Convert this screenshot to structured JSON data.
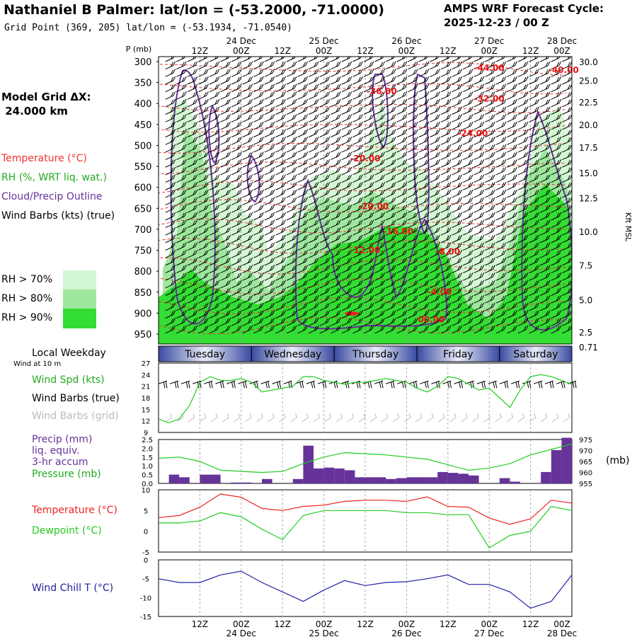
{
  "header": {
    "title": "Nathaniel B Palmer:  lat/lon = (-53.2000, -71.0000)",
    "subtitle": "Grid Point (369, 205) lat/lon = (-53.1934, -71.0540)",
    "cycle_line1": "AMPS WRF Forecast Cycle:",
    "cycle_line2": "2025-12-23 / 00  Z",
    "grid_label_1": "Model Grid ΔX:",
    "grid_label_2": " 24.000 km"
  },
  "legend": {
    "temperature": "Temperature (°C)",
    "rh": "RH (%, WRT liq. wat.)",
    "cloud": "Cloud/Precip Outline",
    "wind": "Wind Barbs (kts) (true)",
    "rh70": "RH > 70%",
    "rh80": "RH > 80%",
    "rh90": "RH > 90%",
    "rh70_color": "#d4f7d4",
    "rh80_color": "#9ee89e",
    "rh90_color": "#33dd33"
  },
  "time_axis": {
    "hours": [
      "12Z",
      "00Z",
      "12Z",
      "00Z",
      "12Z",
      "00Z",
      "12Z",
      "00Z",
      "12Z",
      "00Z"
    ],
    "dates": [
      "24 Dec",
      "25 Dec",
      "26 Dec",
      "27 Dec",
      "28 Dec"
    ],
    "weekdays_title": "Local Weekday",
    "weekdays": [
      "Tuesday",
      "Wednesday",
      "Thursday",
      "Friday",
      "Saturday"
    ]
  },
  "chart_data": [
    {
      "type": "heatmap",
      "name": "cross-section",
      "y_label": "P (mb)",
      "y_right_label": "Kft MSL",
      "pressure_levels": [
        300,
        350,
        400,
        450,
        500,
        550,
        600,
        650,
        700,
        750,
        800,
        850,
        900,
        950
      ],
      "height_kft": [
        "30.0",
        "25.0",
        "22.5",
        "20.0",
        "17.5",
        "15.0",
        "12.5",
        "10.0",
        "7.5",
        "5.0",
        "2.5",
        "0.71"
      ],
      "height_kft_pressure": [
        300,
        345,
        396,
        450,
        504,
        565,
        625,
        705,
        785,
        868,
        945,
        980
      ],
      "temperature_labels": [
        {
          "text": "-44.00",
          "t": 40,
          "p": 322
        },
        {
          "text": "-40.00",
          "t": 49,
          "p": 327
        },
        {
          "text": "-36.00",
          "t": 27,
          "p": 378
        },
        {
          "text": "-32.00",
          "t": 40,
          "p": 395
        },
        {
          "text": "-24.00",
          "t": 38,
          "p": 478
        },
        {
          "text": "-20.00",
          "t": 25,
          "p": 538
        },
        {
          "text": "-20.00",
          "t": 26,
          "p": 652
        },
        {
          "text": "-16.00",
          "t": 29,
          "p": 712
        },
        {
          "text": "-12.00",
          "t": 25,
          "p": 757
        },
        {
          "text": "-8.00",
          "t": 35,
          "p": 760
        },
        {
          "text": "-4.00",
          "t": 34,
          "p": 856
        },
        {
          "text": "00.00",
          "t": 33,
          "p": 922
        }
      ]
    },
    {
      "type": "line",
      "name": "wind-speed",
      "ylabel": "Wind Spd (kts)",
      "caption": "Wind at 10 m",
      "barb_true_label": "Wind Barbs (true)",
      "barb_grid_label": "Wind Barbs (grid)",
      "ylim": [
        9,
        27
      ],
      "yticks": [
        9,
        12,
        15,
        18,
        21,
        24,
        27
      ],
      "x_hours": [
        0,
        3,
        6,
        9,
        12,
        15,
        18,
        21,
        24,
        27,
        30,
        33,
        36,
        39,
        42,
        45,
        48,
        51,
        54,
        57,
        60,
        63,
        66,
        69,
        72,
        75,
        78,
        81,
        84,
        87,
        90,
        93,
        96,
        99,
        102,
        105,
        108,
        111,
        114,
        117,
        120
      ],
      "values": [
        12.5,
        11.5,
        12.5,
        16,
        22,
        23.5,
        22.5,
        22.5,
        23,
        22,
        19.5,
        20,
        20.5,
        21,
        23.5,
        23.5,
        22.5,
        22,
        21.5,
        22,
        22,
        22.5,
        23,
        22.5,
        22,
        20.5,
        19.5,
        21,
        23.5,
        23,
        21.5,
        20,
        20.5,
        18,
        15.5,
        20,
        23.5,
        24,
        23.5,
        22.5,
        21.5
      ]
    },
    {
      "type": "bar",
      "name": "precip-pressure",
      "ylabel": "Precip (mm)",
      "ylabel2": "liq. equiv.",
      "ylabel3": "3-hr accum",
      "ylabel4": "Pressure (mb)",
      "y_right_label": "(mb)",
      "ylim": [
        0,
        2.5
      ],
      "yticks": [
        0.0,
        0.5,
        1.0,
        1.5,
        2.0,
        2.5
      ],
      "y2lim": [
        955,
        975
      ],
      "y2ticks": [
        955,
        960,
        965,
        970,
        975
      ],
      "precip_hours": [
        6,
        9,
        15,
        18,
        24,
        27,
        33,
        36,
        42,
        45,
        48,
        51,
        54,
        57,
        60,
        63,
        66,
        69,
        72,
        75,
        78,
        81,
        84,
        87,
        90,
        93,
        102,
        105,
        108,
        114,
        117,
        120
      ],
      "precip_mm": [
        0.5,
        0.35,
        0.5,
        0.5,
        0.05,
        0.05,
        0.25,
        0.0,
        0.25,
        2.15,
        0.85,
        0.9,
        0.85,
        0.75,
        0.35,
        0.35,
        0.35,
        0.25,
        0.3,
        0.35,
        0.35,
        0.35,
        0.65,
        0.6,
        0.55,
        0.45,
        0.3,
        0.1,
        0.0,
        0.65,
        1.9,
        2.6
      ],
      "pressure_hours": [
        0,
        6,
        12,
        18,
        24,
        30,
        36,
        42,
        48,
        54,
        60,
        66,
        72,
        78,
        84,
        90,
        96,
        102,
        108,
        114,
        120
      ],
      "pressure_mb": [
        966.5,
        967,
        965,
        961,
        960.5,
        960,
        960.5,
        964,
        967,
        969,
        968.5,
        968,
        967,
        966,
        963.5,
        961,
        962,
        964,
        968,
        970.5,
        973
      ]
    },
    {
      "type": "line",
      "name": "temperature-dewpoint",
      "series_names": [
        "Temperature (°C)",
        "Dewpoint (°C)"
      ],
      "ylim": [
        -5,
        10
      ],
      "yticks": [
        -5,
        0,
        5,
        10
      ],
      "x_hours": [
        0,
        6,
        12,
        18,
        24,
        30,
        36,
        42,
        48,
        54,
        60,
        66,
        72,
        78,
        84,
        90,
        96,
        102,
        108,
        114,
        120
      ],
      "temperature": [
        3.3,
        3.8,
        5.8,
        9.0,
        8.2,
        5.5,
        5.0,
        6.0,
        6.3,
        7.2,
        7.5,
        7.5,
        7.2,
        8.3,
        6.0,
        5.8,
        3.2,
        1.7,
        3.0,
        7.5,
        6.8
      ],
      "dewpoint": [
        2.0,
        2.0,
        2.5,
        4.5,
        3.5,
        0.5,
        -2.0,
        3.8,
        5.0,
        5.0,
        5.0,
        5.0,
        4.5,
        4.5,
        4.0,
        4.0,
        -4.0,
        -1.0,
        0.0,
        6.0,
        5.0
      ]
    },
    {
      "type": "line",
      "name": "wind-chill",
      "ylabel": "Wind Chill T (°C)",
      "ylim": [
        -15,
        0
      ],
      "yticks": [
        0,
        -5,
        -10,
        -15
      ],
      "x_hours": [
        0,
        6,
        12,
        18,
        24,
        30,
        36,
        42,
        48,
        54,
        60,
        66,
        72,
        78,
        84,
        90,
        96,
        102,
        108,
        114,
        120
      ],
      "values": [
        -5.0,
        -6.0,
        -6.0,
        -4.0,
        -3.0,
        -6.0,
        -8.5,
        -11.0,
        -8.0,
        -5.5,
        -6.8,
        -6.0,
        -5.8,
        -5.0,
        -4.0,
        -6.5,
        -6.5,
        -8.5,
        -12.8,
        -11.0,
        -4.0
      ]
    }
  ]
}
